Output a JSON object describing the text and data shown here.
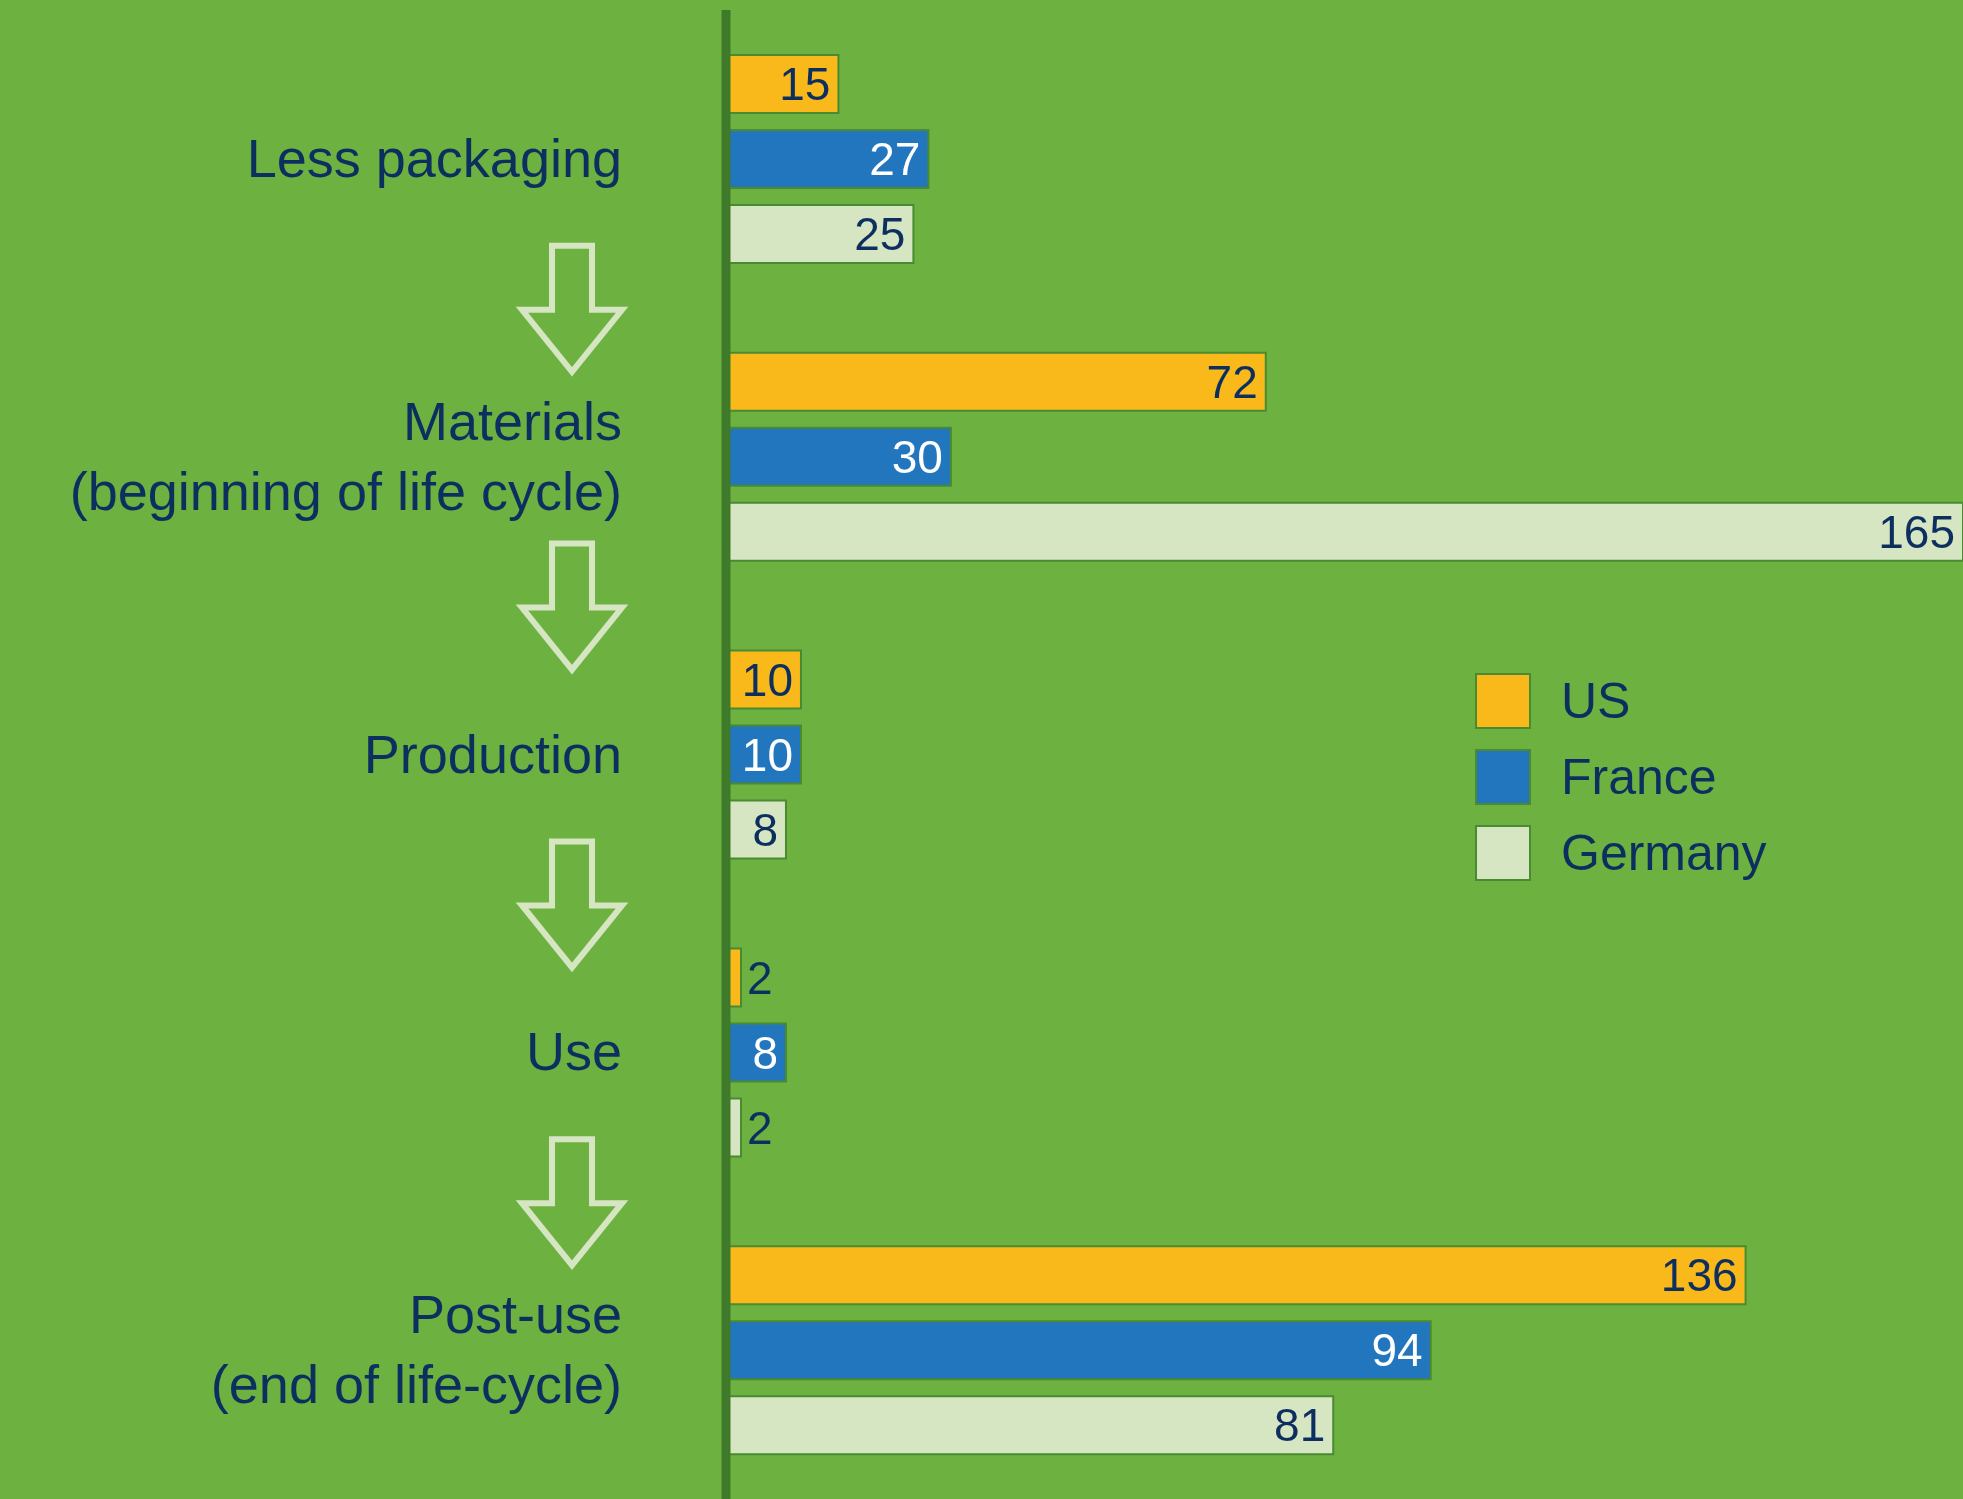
{
  "chart_data": {
    "type": "bar",
    "orientation": "horizontal",
    "categories": [
      "Less packaging",
      "Materials\n(beginning of life cycle)",
      "Production",
      "Use",
      "Post-use\n(end of life-cycle)"
    ],
    "series": [
      {
        "name": "US",
        "color": "#f9b91b",
        "values": [
          15,
          72,
          10,
          2,
          136
        ]
      },
      {
        "name": "France",
        "color": "#2176bd",
        "values": [
          27,
          30,
          10,
          8,
          94
        ]
      },
      {
        "name": "Germany",
        "color": "#d6e6c3",
        "values": [
          25,
          165,
          8,
          2,
          81
        ]
      }
    ],
    "xlim": [
      0,
      165
    ],
    "data_labels": true,
    "legend": "right",
    "grid": false,
    "tick_labels": "y"
  }
}
